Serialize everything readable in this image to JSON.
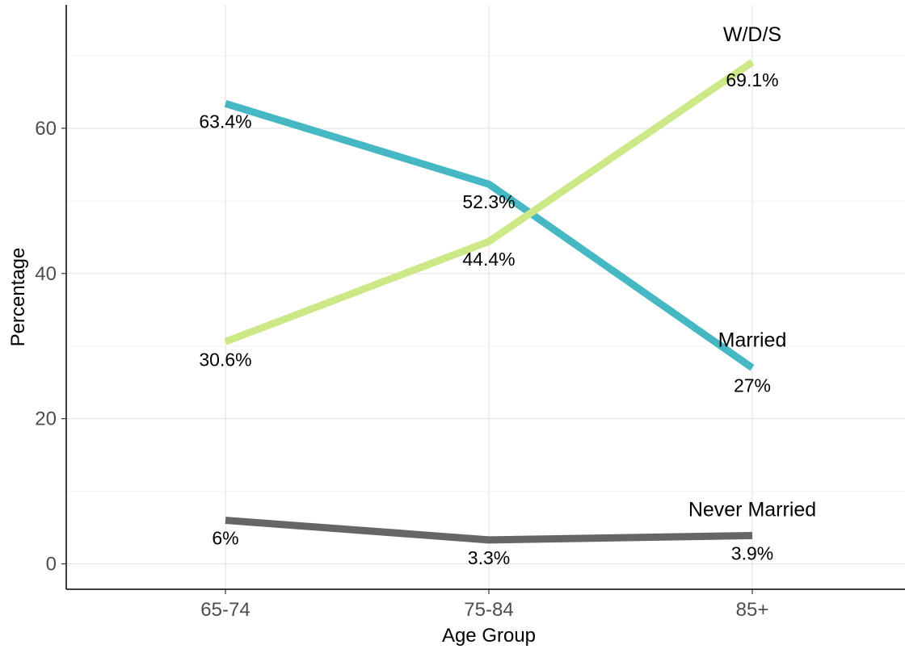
{
  "chart_data": {
    "type": "line",
    "title": "",
    "xlabel": "Age Group",
    "ylabel": "Percentage",
    "categories": [
      "65-74",
      "75-84",
      "85+"
    ],
    "ylim": [
      -3.5,
      77
    ],
    "yticks": [
      0,
      20,
      40,
      60
    ],
    "y_tick_labels": [
      "0",
      "20",
      "40",
      "60"
    ],
    "grid": true,
    "legend": "none",
    "series": [
      {
        "name": "Married",
        "color": "#45B8C4",
        "values": [
          63.4,
          52.3,
          27
        ],
        "labels": [
          "63.4%",
          "52.3%",
          "27%"
        ]
      },
      {
        "name": "W/D/S",
        "color": "#CCE887",
        "values": [
          30.6,
          44.4,
          69.1
        ],
        "labels": [
          "30.6%",
          "44.4%",
          "69.1%"
        ]
      },
      {
        "name": "Never Married",
        "color": "#666666",
        "values": [
          6,
          3.3,
          3.9
        ],
        "labels": [
          "6%",
          "3.3%",
          "3.9%"
        ]
      }
    ]
  }
}
